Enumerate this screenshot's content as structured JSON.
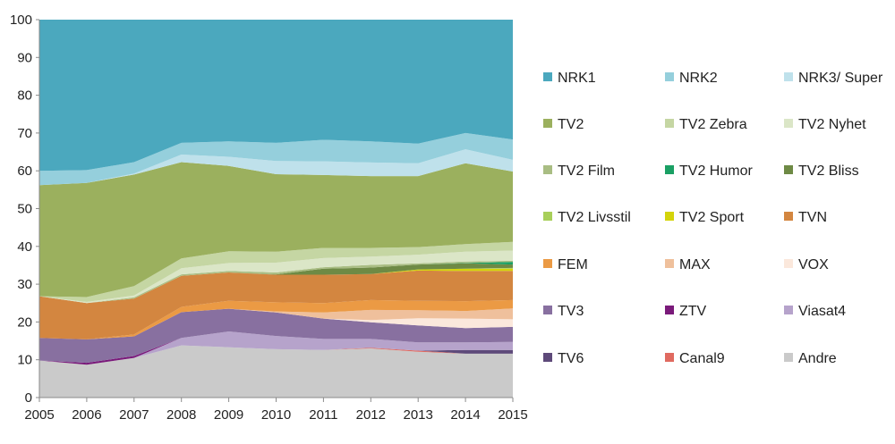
{
  "chart_data": {
    "type": "area",
    "stacked": true,
    "title": "",
    "xlabel": "",
    "ylabel": "",
    "x": [
      2005,
      2006,
      2007,
      2008,
      2009,
      2010,
      2011,
      2012,
      2013,
      2014,
      2015
    ],
    "ylim": [
      0,
      100
    ],
    "yticks": [
      0,
      10,
      20,
      30,
      40,
      50,
      60,
      70,
      80,
      90,
      100
    ],
    "grid": false,
    "legend_position": "right",
    "series": [
      {
        "name": "Andre",
        "color": "#cacaca",
        "values": [
          9.8,
          8.7,
          10.5,
          13.8,
          13.3,
          12.8,
          12.6,
          13.0,
          12.1,
          11.6,
          11.6
        ]
      },
      {
        "name": "Canal9",
        "color": "#e06a60",
        "values": [
          0,
          0,
          0,
          0,
          0,
          0,
          0,
          0.2,
          0.3,
          0,
          0
        ]
      },
      {
        "name": "TV6",
        "color": "#5e4a7a",
        "values": [
          0,
          0,
          0,
          0,
          0,
          0,
          0,
          0,
          0,
          1.0,
          1.0
        ]
      },
      {
        "name": "Viasat4",
        "color": "#b6a3cb",
        "values": [
          0,
          0,
          0,
          2.0,
          4.2,
          3.5,
          2.9,
          2.3,
          2.2,
          2.0,
          2.1
        ]
      },
      {
        "name": "ZTV",
        "color": "#7a1a7a",
        "values": [
          0,
          0.5,
          0.5,
          0,
          0,
          0,
          0,
          0,
          0,
          0,
          0
        ]
      },
      {
        "name": "TV3",
        "color": "#8870a0",
        "values": [
          6.0,
          6.2,
          5.2,
          6.8,
          6.0,
          6.2,
          5.4,
          4.4,
          4.5,
          3.8,
          4.0
        ]
      },
      {
        "name": "VOX",
        "color": "#fbe8dc",
        "values": [
          0,
          0,
          0,
          0,
          0,
          0,
          0,
          0.6,
          1.9,
          2.5,
          2.0
        ]
      },
      {
        "name": "MAX",
        "color": "#efc09c",
        "values": [
          0,
          0,
          0,
          0,
          0,
          0.3,
          1.6,
          2.7,
          2.1,
          2.0,
          2.9
        ]
      },
      {
        "name": "FEM",
        "color": "#eb9a44",
        "values": [
          0,
          0,
          0.5,
          1.4,
          2.1,
          2.4,
          2.5,
          2.6,
          2.5,
          2.6,
          2.2
        ]
      },
      {
        "name": "TVN",
        "color": "#d38640",
        "values": [
          11.0,
          9.6,
          9.5,
          8.2,
          7.5,
          7.3,
          7.5,
          6.9,
          8.0,
          8.0,
          7.7
        ]
      },
      {
        "name": "TV2 Sport",
        "color": "#d4d40a",
        "values": [
          0,
          0,
          0,
          0,
          0,
          0,
          0,
          0,
          0.3,
          0.6,
          0.6
        ]
      },
      {
        "name": "TV2 Livsstil",
        "color": "#a8cf5a",
        "values": [
          0,
          0,
          0,
          0,
          0,
          0,
          0,
          0,
          0,
          0,
          0.2
        ]
      },
      {
        "name": "TV2 Bliss",
        "color": "#6e8a45",
        "values": [
          0,
          0,
          0,
          0,
          0,
          0.1,
          1.6,
          1.7,
          1.3,
          1.4,
          0.9
        ]
      },
      {
        "name": "TV2 Humor",
        "color": "#1aa064",
        "values": [
          0,
          0,
          0,
          0,
          0,
          0,
          0,
          0,
          0,
          0.1,
          0.7
        ]
      },
      {
        "name": "TV2 Film",
        "color": "#a9bd83",
        "values": [
          0,
          0,
          0.3,
          0.4,
          0.4,
          0.5,
          0.4,
          0.7,
          0.3,
          0.4,
          0.3
        ]
      },
      {
        "name": "TV2 Nyhet",
        "color": "#dbe6c7",
        "values": [
          0,
          0.3,
          0.5,
          1.6,
          2.1,
          2.6,
          2.4,
          2.2,
          2.3,
          2.6,
          2.7
        ]
      },
      {
        "name": "TV2 Zebra",
        "color": "#c5d6a3",
        "values": [
          0,
          1.3,
          2.5,
          2.6,
          3.1,
          2.9,
          2.7,
          2.3,
          2.0,
          2.0,
          2.3
        ]
      },
      {
        "name": "TV2",
        "color": "#9bb05e",
        "values": [
          29.4,
          30.2,
          29.5,
          25.5,
          22.6,
          20.5,
          19.3,
          19.0,
          18.8,
          21.4,
          18.6
        ]
      },
      {
        "name": "NRK3/ Super",
        "color": "#bfe1eb",
        "values": [
          0,
          0,
          0.3,
          2.0,
          2.4,
          3.5,
          3.6,
          3.6,
          3.4,
          3.7,
          3.1
        ]
      },
      {
        "name": "NRK2",
        "color": "#95cfdc",
        "values": [
          3.8,
          3.4,
          3.0,
          3.1,
          4.1,
          4.8,
          5.7,
          5.6,
          5.2,
          4.3,
          5.4
        ]
      },
      {
        "name": "NRK1",
        "color": "#4ba8be",
        "values": [
          40.0,
          39.8,
          37.7,
          32.6,
          32.2,
          32.6,
          31.8,
          32.2,
          32.8,
          30.0,
          31.7
        ]
      }
    ],
    "legend_order": [
      "NRK1",
      "NRK2",
      "NRK3/ Super",
      "TV2",
      "TV2 Zebra",
      "TV2 Nyhet",
      "TV2 Film",
      "TV2 Humor",
      "TV2 Bliss",
      "TV2 Livsstil",
      "TV2 Sport",
      "TVN",
      "FEM",
      "MAX",
      "VOX",
      "TV3",
      "ZTV",
      "Viasat4",
      "TV6",
      "Canal9",
      "Andre"
    ]
  }
}
